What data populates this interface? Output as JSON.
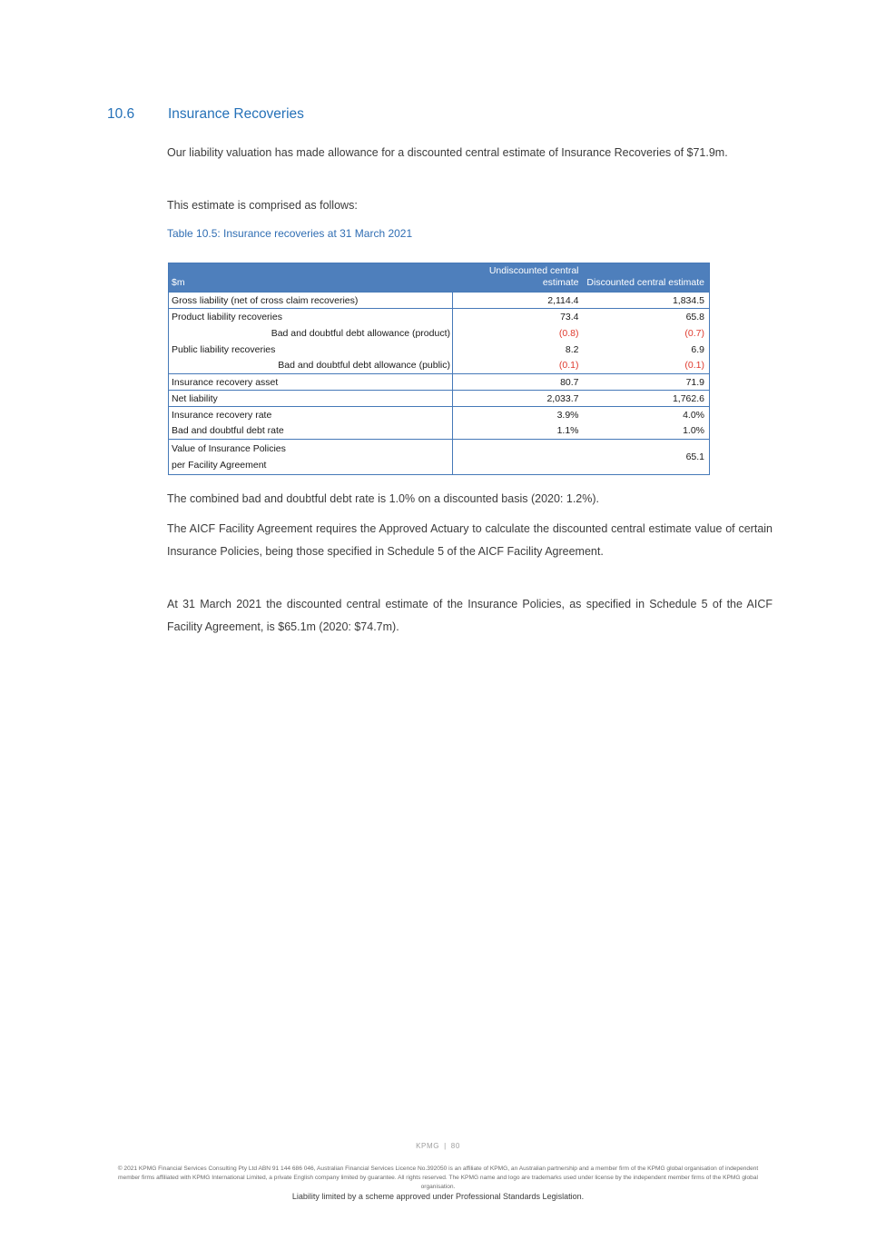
{
  "section": {
    "number": "10.6",
    "title": "Insurance Recoveries",
    "paragraphs": {
      "intro": "Our liability valuation has made allowance for a discounted central estimate of Insurance Recoveries of $71.9m.",
      "comprised": "This estimate is comprised as follows:",
      "combined_rate": "The combined bad and doubtful debt rate is 1.0% on a discounted basis (2020: 1.2%).",
      "aicf_requirement": "The AICF Facility Agreement requires the Approved Actuary to calculate the discounted central estimate value of certain Insurance Policies, being those specified in Schedule 5 of the AICF Facility Agreement.",
      "march_estimate": "At 31 March 2021 the discounted central estimate of the Insurance Policies, as specified in Schedule 5 of the AICF Facility Agreement, is $65.1m (2020: $74.7m)."
    }
  },
  "table": {
    "caption": "Table 10.5: Insurance recoveries at 31 March 2021",
    "columns": [
      "$m",
      "Undiscounted central estimate",
      "Discounted central estimate"
    ],
    "groups": [
      {
        "rows": [
          {
            "label": "Gross liability (net of cross claim recoveries)",
            "undiscounted": "2,114.4",
            "discounted": "1,834.5"
          }
        ]
      },
      {
        "rows": [
          {
            "label": "Product liability recoveries",
            "undiscounted": "73.4",
            "discounted": "65.8"
          },
          {
            "label": "Bad and doubtful debt allowance (product)",
            "undiscounted": "(0.8)",
            "discounted": "(0.7)",
            "indent": true
          },
          {
            "label": "Public liability recoveries",
            "undiscounted": "8.2",
            "discounted": "6.9"
          },
          {
            "label": "Bad and doubtful debt allowance (public)",
            "undiscounted": "(0.1)",
            "discounted": "(0.1)",
            "indent": true
          }
        ]
      },
      {
        "rows": [
          {
            "label": "Insurance recovery asset",
            "undiscounted": "80.7",
            "discounted": "71.9"
          }
        ]
      },
      {
        "rows": [
          {
            "label": "Net liability",
            "undiscounted": "2,033.7",
            "discounted": "1,762.6"
          }
        ]
      },
      {
        "rows": [
          {
            "label": "Insurance recovery rate",
            "undiscounted": "3.9%",
            "discounted": "4.0%"
          },
          {
            "label": "Bad and doubtful debt rate",
            "undiscounted": "1.1%",
            "discounted": "1.0%"
          }
        ]
      },
      {
        "rows": [
          {
            "label": "Value of Insurance Policies",
            "label2": "per Facility Agreement",
            "undiscounted": "",
            "discounted": "65.1"
          }
        ]
      }
    ]
  },
  "footer": {
    "brand": "KPMG",
    "divider": "|",
    "page_number": "80",
    "legal": "© 2021 KPMG Financial Services Consulting Pty Ltd ABN 91 144 686 046, Australian Financial Services Licence No.392050 is an affiliate of KPMG, an Australian partnership and a member firm of the KPMG global organisation of independent member firms affiliated with KPMG International Limited, a private English company limited by guarantee. All rights reserved. The KPMG name and logo are trademarks used under license by the independent member firms of the KPMG global organisation.",
    "liability": "Liability limited by a scheme approved under Professional Standards Legislation."
  },
  "colors": {
    "heading_blue": "#2571b8",
    "caption_blue": "#306eb3",
    "table_header_blue": "#4e7fbc",
    "table_border_blue": "#4679b8",
    "negative_red": "#df3a2e",
    "body_text": "#3c3c3c",
    "footer_gray": "#6b6b6b"
  }
}
